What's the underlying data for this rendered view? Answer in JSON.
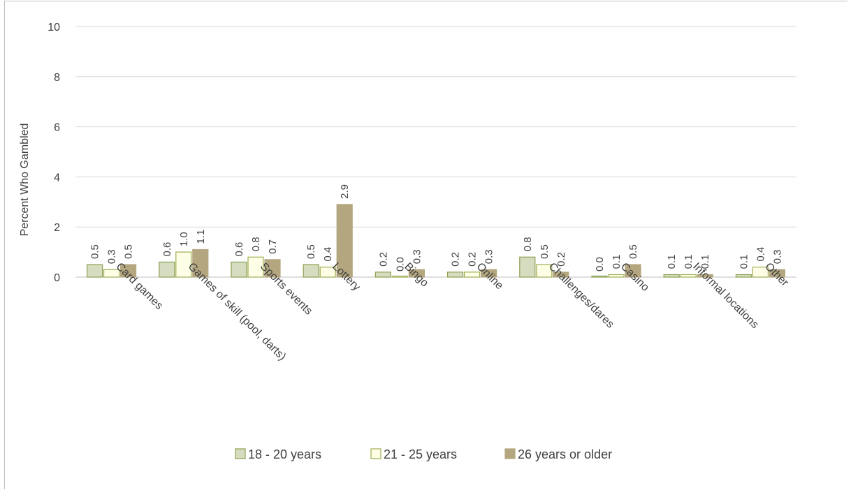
{
  "chart_data": {
    "type": "bar",
    "title": "",
    "xlabel": "",
    "ylabel": "Percent Who Gambled",
    "ylim": [
      0,
      10
    ],
    "yticks": [
      0,
      2,
      4,
      6,
      8,
      10
    ],
    "grid": true,
    "legend_position": "bottom",
    "categories": [
      "Card games",
      "Games of skill (pool, darts)",
      "Sports events",
      "Lottery",
      "Bingo",
      "Online",
      "Challenges/dares",
      "Casino",
      "Informal locations",
      "Other"
    ],
    "series": [
      {
        "name": "18 - 20 years",
        "color": "#d6dcc0",
        "stroke": "#8aa050",
        "values": [
          0.5,
          0.6,
          0.6,
          0.5,
          0.2,
          0.2,
          0.8,
          0.0,
          0.1,
          0.1
        ],
        "labels": [
          "0.5",
          "0.6",
          "0.6",
          "0.5",
          "0.2",
          "0.2",
          "0.8",
          "0.0",
          "0.1",
          "0.1"
        ]
      },
      {
        "name": "21 - 25 years",
        "color": "#fefde6",
        "stroke": "#9cae52",
        "values": [
          0.3,
          1.0,
          0.8,
          0.4,
          0.0,
          0.2,
          0.5,
          0.1,
          0.1,
          0.4
        ],
        "labels": [
          "0.3",
          "1.0",
          "0.8",
          "0.4",
          "0.0",
          "0.2",
          "0.5",
          "0.1",
          "0.1",
          "0.4"
        ]
      },
      {
        "name": "26 years or older",
        "color": "#b4a77f",
        "stroke": "#b4a77f",
        "values": [
          0.5,
          1.1,
          0.7,
          2.9,
          0.3,
          0.3,
          0.2,
          0.5,
          0.1,
          0.3
        ],
        "labels": [
          "0.5",
          "1.1",
          "0.7",
          "2.9",
          "0.3",
          "0.3",
          "0.2",
          "0.5",
          "0.1",
          "0.3"
        ]
      }
    ]
  }
}
